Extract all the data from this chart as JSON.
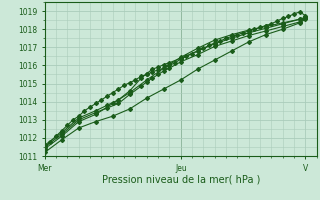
{
  "title": "",
  "xlabel": "Pression niveau de la mer( hPa )",
  "ylabel": "",
  "bg_color": "#cce8d8",
  "plot_bg_color": "#cce8d8",
  "grid_color": "#aaccbb",
  "line_color": "#1a5c1a",
  "marker_color": "#1a5c1a",
  "ylim": [
    1011.0,
    1019.5
  ],
  "yticks": [
    1011,
    1012,
    1013,
    1014,
    1015,
    1016,
    1017,
    1018,
    1019
  ],
  "xtick_labels": [
    "Mer",
    "Jeu",
    "V"
  ],
  "xtick_pos": [
    0,
    48,
    92
  ],
  "xlim": [
    0,
    96
  ],
  "line1_x": [
    0,
    2,
    4,
    6,
    8,
    10,
    12,
    14,
    16,
    18,
    20,
    22,
    24,
    26,
    28,
    30,
    32,
    34,
    36,
    38,
    40,
    42,
    44,
    46,
    48,
    50,
    52,
    54,
    56,
    58,
    60,
    62,
    64,
    66,
    68,
    70,
    72,
    74,
    76,
    78,
    80,
    82,
    84,
    86,
    88,
    90,
    92
  ],
  "line1_y": [
    1011.5,
    1011.8,
    1012.1,
    1012.4,
    1012.7,
    1013.0,
    1013.2,
    1013.5,
    1013.7,
    1013.9,
    1014.1,
    1014.3,
    1014.5,
    1014.7,
    1014.9,
    1015.05,
    1015.2,
    1015.4,
    1015.5,
    1015.65,
    1015.75,
    1015.85,
    1016.0,
    1016.15,
    1016.35,
    1016.5,
    1016.65,
    1016.8,
    1016.95,
    1017.1,
    1017.25,
    1017.35,
    1017.5,
    1017.6,
    1017.7,
    1017.8,
    1017.9,
    1018.0,
    1018.1,
    1018.2,
    1018.3,
    1018.45,
    1018.6,
    1018.7,
    1018.85,
    1018.95,
    1018.75
  ],
  "line2_x": [
    0,
    6,
    12,
    18,
    22,
    26,
    30,
    34,
    36,
    38,
    40,
    42,
    44,
    48,
    54,
    60,
    66,
    72,
    78,
    84,
    90,
    92
  ],
  "line2_y": [
    1011.6,
    1012.3,
    1013.1,
    1013.5,
    1013.8,
    1014.1,
    1014.6,
    1015.3,
    1015.55,
    1015.8,
    1015.9,
    1016.05,
    1016.15,
    1016.4,
    1016.8,
    1017.2,
    1017.5,
    1017.8,
    1018.05,
    1018.3,
    1018.55,
    1018.65
  ],
  "line3_x": [
    0,
    6,
    12,
    18,
    22,
    26,
    30,
    34,
    36,
    38,
    40,
    42,
    44,
    48,
    54,
    60,
    66,
    72,
    78,
    84,
    90,
    92
  ],
  "line3_y": [
    1011.5,
    1012.2,
    1013.0,
    1013.4,
    1013.65,
    1013.9,
    1014.4,
    1014.85,
    1015.1,
    1015.3,
    1015.5,
    1015.7,
    1015.85,
    1016.2,
    1016.6,
    1017.05,
    1017.35,
    1017.65,
    1017.9,
    1018.15,
    1018.4,
    1018.6
  ],
  "line4_x": [
    0,
    6,
    12,
    18,
    24,
    30,
    36,
    42,
    48,
    54,
    60,
    66,
    72,
    78,
    84,
    90,
    92
  ],
  "line4_y": [
    1011.4,
    1012.1,
    1012.9,
    1013.3,
    1013.9,
    1014.5,
    1015.2,
    1015.85,
    1016.45,
    1016.95,
    1017.4,
    1017.7,
    1017.95,
    1018.15,
    1018.35,
    1018.55,
    1018.65
  ],
  "line5_x": [
    0,
    6,
    12,
    18,
    24,
    30,
    36,
    42,
    48,
    54,
    60,
    66,
    72,
    78,
    84,
    90,
    92
  ],
  "line5_y": [
    1011.2,
    1011.9,
    1012.55,
    1012.9,
    1013.2,
    1013.6,
    1014.2,
    1014.7,
    1015.2,
    1015.8,
    1016.3,
    1016.8,
    1017.3,
    1017.7,
    1018.0,
    1018.35,
    1018.55
  ]
}
